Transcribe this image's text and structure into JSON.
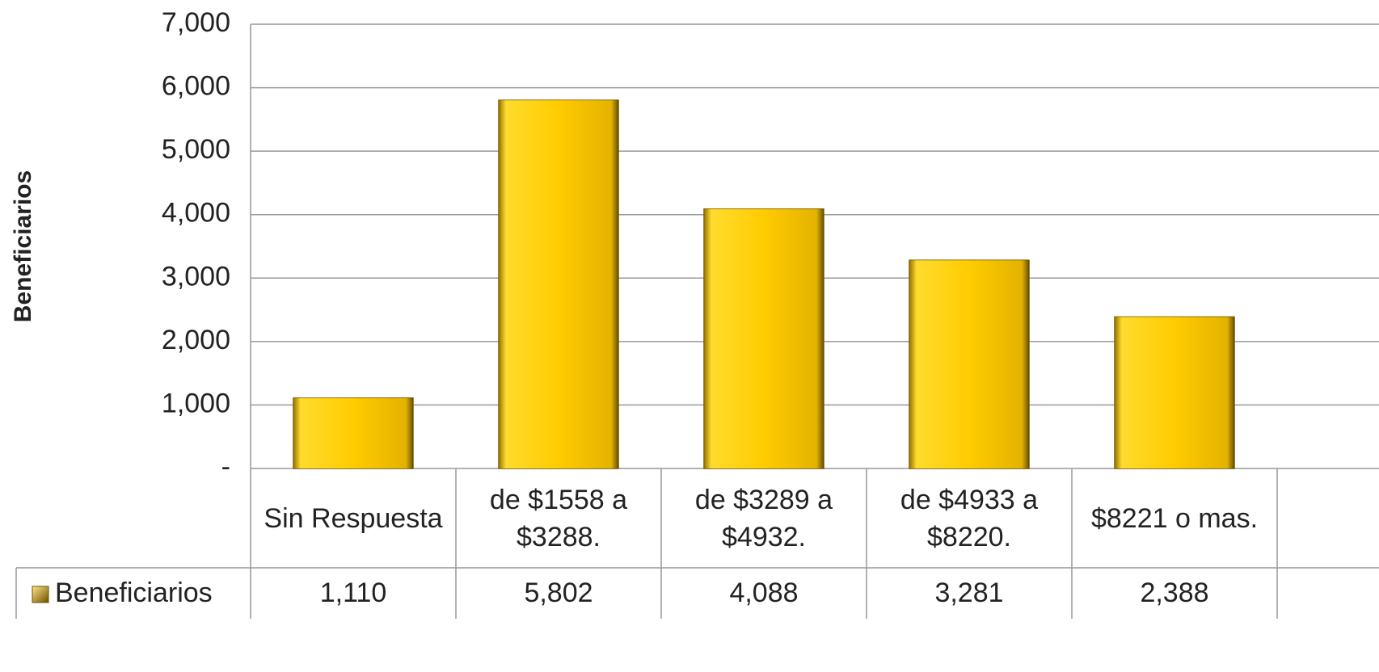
{
  "chart_data": {
    "type": "bar",
    "y_label": "Beneficiarios",
    "categories": [
      "Sin Respuesta",
      "de $1558 a $3288.",
      "de $3289 a $4932.",
      "de $4933 a $8220.",
      "$8221 o mas."
    ],
    "series": [
      {
        "name": "Beneficiarios",
        "color": "#ffcc00",
        "values": [
          1110,
          5802,
          4088,
          3281,
          2388
        ],
        "value_labels": [
          "1,110",
          "5,802",
          "4,088",
          "3,281",
          "2,388"
        ]
      }
    ],
    "ylim": [
      0,
      7000
    ],
    "yticks": [
      {
        "value": 0,
        "label": "-"
      },
      {
        "value": 1000,
        "label": "1,000"
      },
      {
        "value": 2000,
        "label": "2,000"
      },
      {
        "value": 3000,
        "label": "3,000"
      },
      {
        "value": 4000,
        "label": "4,000"
      },
      {
        "value": 5000,
        "label": "5,000"
      },
      {
        "value": 6000,
        "label": "6,000"
      },
      {
        "value": 7000,
        "label": "7,000"
      }
    ],
    "grid": true
  }
}
